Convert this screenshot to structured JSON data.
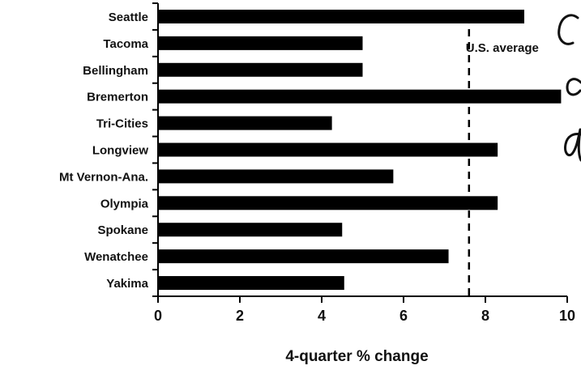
{
  "chart_data": {
    "type": "bar",
    "orientation": "horizontal",
    "categories": [
      "Seattle",
      "Tacoma",
      "Bellingham",
      "Bremerton",
      "Tri-Cities",
      "Longview",
      "Mt Vernon-Ana.",
      "Olympia",
      "Spokane",
      "Wenatchee",
      "Yakima"
    ],
    "values": [
      8.95,
      5.0,
      5.0,
      9.85,
      4.25,
      8.3,
      5.75,
      8.3,
      4.5,
      7.1,
      4.55
    ],
    "xlabel": "4-quarter % change",
    "xlim": [
      0,
      10
    ],
    "xticks": [
      0,
      2,
      4,
      6,
      8,
      10
    ],
    "bar_color": "#000000",
    "grid": false,
    "reference_line": {
      "label": "U.S. average",
      "value": 7.6,
      "style": "dashed"
    }
  }
}
